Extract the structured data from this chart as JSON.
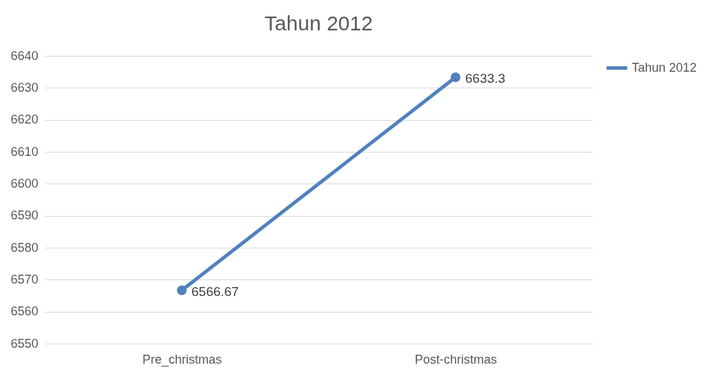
{
  "chart_data": {
    "type": "line",
    "title": "Tahun 2012",
    "categories": [
      "Pre_christmas",
      "Post-christmas"
    ],
    "series": [
      {
        "name": "Tahun 2012",
        "color": "#4f81bd",
        "values": [
          6566.67,
          6633.3
        ]
      }
    ],
    "ylim": [
      6550,
      6640
    ],
    "yticks": [
      6550,
      6560,
      6570,
      6580,
      6590,
      6600,
      6610,
      6620,
      6630,
      6640
    ],
    "grid": "y",
    "legend": "right",
    "marker": "circle",
    "line_style": "solid",
    "data_labels": true
  }
}
